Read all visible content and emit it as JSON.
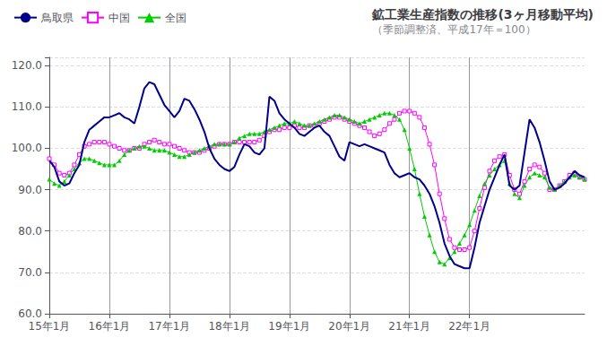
{
  "chart_data": {
    "type": "line",
    "title": "鉱工業生産指数の推移(3ヶ月移動平均)",
    "subtitle": "（季節調整済、平成17年＝100）",
    "categories": [
      "15年1月",
      null,
      null,
      null,
      null,
      null,
      null,
      null,
      null,
      null,
      null,
      null,
      "16年1月",
      null,
      null,
      null,
      null,
      null,
      null,
      null,
      null,
      null,
      null,
      null,
      "17年1月",
      null,
      null,
      null,
      null,
      null,
      null,
      null,
      null,
      null,
      null,
      null,
      "18年1月",
      null,
      null,
      null,
      null,
      null,
      null,
      null,
      null,
      null,
      null,
      null,
      "19年1月",
      null,
      null,
      null,
      null,
      null,
      null,
      null,
      null,
      null,
      null,
      null,
      "20年1月",
      null,
      null,
      null,
      null,
      null,
      null,
      null,
      null,
      null,
      null,
      null,
      "21年1月",
      null,
      null,
      null,
      null,
      null,
      null,
      null,
      null,
      null,
      null,
      null,
      "22年1月",
      null,
      null,
      null,
      null,
      null,
      null,
      null,
      null,
      null,
      null,
      null,
      null,
      null,
      null,
      null,
      null,
      null,
      null,
      null,
      null,
      null,
      null,
      null
    ],
    "series": [
      {
        "name": "鳥取県",
        "color": "#00008b",
        "marker": "none",
        "line_style": "solid",
        "values": [
          97.0,
          95.5,
          92.0,
          91.0,
          91.5,
          94.0,
          96.0,
          101.5,
          104.5,
          105.5,
          106.5,
          107.5,
          107.5,
          108.0,
          108.5,
          107.5,
          107.0,
          106.0,
          110.0,
          114.5,
          116.0,
          115.5,
          113.0,
          110.5,
          109.0,
          107.5,
          109.0,
          112.0,
          111.5,
          109.5,
          107.0,
          104.0,
          100.0,
          97.5,
          96.0,
          95.0,
          94.5,
          95.5,
          98.5,
          101.0,
          100.5,
          99.0,
          98.5,
          100.0,
          112.5,
          111.5,
          108.5,
          107.0,
          106.0,
          105.0,
          103.5,
          103.0,
          104.0,
          105.0,
          105.5,
          104.0,
          103.0,
          100.5,
          98.0,
          97.0,
          101.5,
          101.0,
          100.5,
          101.0,
          100.5,
          100.0,
          99.5,
          99.0,
          96.0,
          94.0,
          93.0,
          93.5,
          94.0,
          93.0,
          92.5,
          91.0,
          89.0,
          86.0,
          82.0,
          77.0,
          74.0,
          72.0,
          71.5,
          71.0,
          71.0,
          76.0,
          82.0,
          86.0,
          90.0,
          93.0,
          96.0,
          98.5,
          91.0,
          90.0,
          91.0,
          99.0,
          107.0,
          105.0,
          101.5,
          97.0,
          92.0,
          90.0,
          90.5,
          91.5,
          93.0,
          94.5,
          93.5,
          93.0
        ]
      },
      {
        "name": "中国",
        "color": "#ff00ff",
        "marker": "square",
        "line_style": "solid",
        "values": [
          97.5,
          96.0,
          94.0,
          93.5,
          94.0,
          96.0,
          98.5,
          100.5,
          101.0,
          101.5,
          101.5,
          101.5,
          101.0,
          100.5,
          100.0,
          99.5,
          99.5,
          100.0,
          100.0,
          101.0,
          101.5,
          102.0,
          101.5,
          101.0,
          101.0,
          100.5,
          100.0,
          99.5,
          99.0,
          99.0,
          99.0,
          99.5,
          100.0,
          100.5,
          101.0,
          101.0,
          101.0,
          101.5,
          101.5,
          101.5,
          101.5,
          101.5,
          102.0,
          103.0,
          104.0,
          104.5,
          104.5,
          105.0,
          105.0,
          105.5,
          105.0,
          105.0,
          105.5,
          105.5,
          106.0,
          106.5,
          107.0,
          107.5,
          107.5,
          107.0,
          106.5,
          106.0,
          105.5,
          105.0,
          104.0,
          103.0,
          103.5,
          104.5,
          106.0,
          107.0,
          108.5,
          109.0,
          109.0,
          108.5,
          107.5,
          105.0,
          101.0,
          96.0,
          89.0,
          83.0,
          78.0,
          76.0,
          75.5,
          75.5,
          76.0,
          80.0,
          85.5,
          90.5,
          94.5,
          97.0,
          98.0,
          98.5,
          93.5,
          90.0,
          89.0,
          92.0,
          95.0,
          96.0,
          95.5,
          94.0,
          90.0,
          90.0,
          91.0,
          92.0,
          93.5,
          94.0,
          93.0,
          92.5
        ]
      },
      {
        "name": "全国",
        "color": "#00cc00",
        "marker": "triangle",
        "line_style": "solid",
        "values": [
          92.5,
          91.5,
          91.0,
          92.0,
          93.5,
          95.0,
          96.5,
          97.5,
          97.5,
          97.0,
          96.5,
          96.0,
          96.0,
          96.0,
          97.0,
          98.5,
          99.5,
          100.0,
          100.5,
          100.5,
          100.0,
          99.5,
          99.5,
          99.5,
          99.0,
          98.5,
          98.0,
          98.0,
          98.5,
          99.0,
          99.5,
          100.0,
          100.5,
          101.0,
          101.0,
          101.0,
          101.0,
          101.5,
          102.5,
          103.0,
          103.5,
          103.5,
          103.5,
          104.0,
          104.5,
          105.0,
          105.5,
          106.0,
          106.0,
          106.5,
          106.0,
          105.5,
          105.5,
          106.0,
          106.5,
          107.0,
          107.5,
          108.0,
          108.0,
          107.5,
          107.0,
          106.5,
          106.0,
          106.5,
          107.0,
          107.5,
          108.0,
          108.5,
          108.5,
          108.0,
          107.0,
          104.5,
          100.0,
          95.0,
          89.0,
          83.5,
          79.0,
          75.0,
          72.5,
          72.0,
          73.5,
          75.0,
          77.0,
          79.0,
          81.5,
          85.0,
          88.5,
          91.5,
          93.5,
          95.0,
          96.0,
          97.0,
          91.5,
          89.0,
          88.0,
          91.0,
          93.0,
          94.0,
          93.5,
          93.0,
          90.5,
          90.0,
          91.0,
          92.0,
          93.0,
          93.5,
          93.0,
          92.5
        ]
      }
    ],
    "ylim": [
      60.0,
      122.0
    ],
    "yticks": [
      {
        "value": 60.0,
        "label": "60.0"
      },
      {
        "value": 70.0,
        "label": "70.0"
      },
      {
        "value": 80.0,
        "label": "80.0"
      },
      {
        "value": 90.0,
        "label": "90.0"
      },
      {
        "value": 100.0,
        "label": "100.0"
      },
      {
        "value": 110.0,
        "label": "110.0"
      },
      {
        "value": 120.0,
        "label": "120.0"
      }
    ],
    "grid": true,
    "legend": "upper left"
  }
}
